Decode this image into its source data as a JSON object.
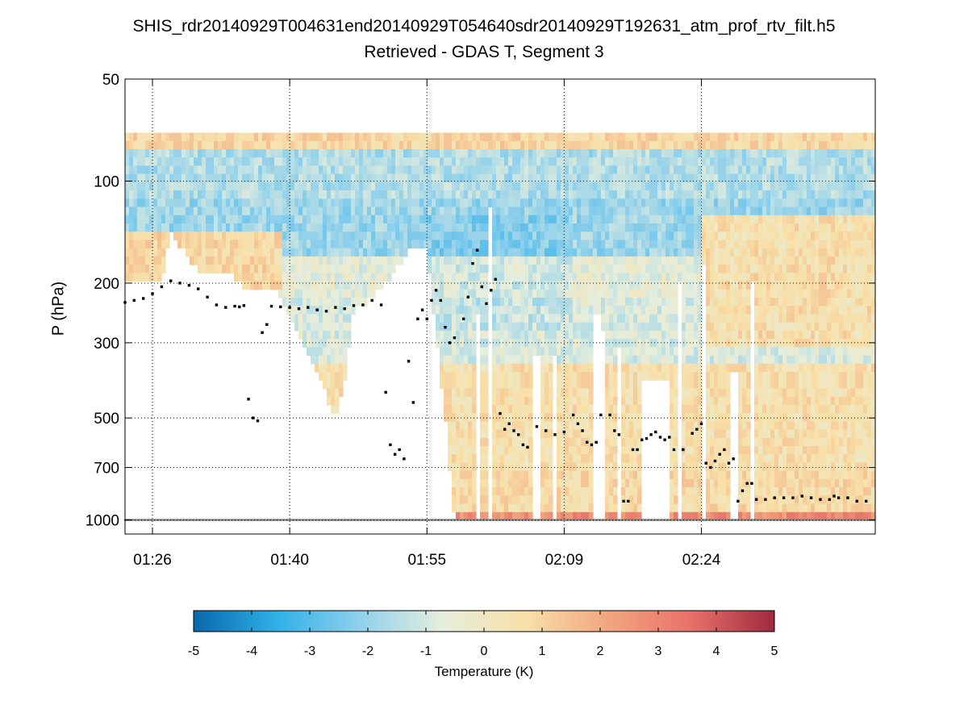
{
  "chart_data": {
    "type": "heatmap",
    "title": "SHIS_rdr20140929T004631end20140929T054640sdr20140929T192631_atm_prof_rtv_filt.h5",
    "subtitle": "Retrieved - GDAS T, Segment 3",
    "xlabel": "",
    "ylabel": "P (hPa)",
    "y_scale": "log",
    "y_direction": "reversed",
    "ylim": [
      50,
      1100
    ],
    "xlim_minutes": [
      1163,
      1245
    ],
    "x_tick_values": [
      1166,
      1181,
      1196,
      1211,
      1226
    ],
    "x_tick_labels": [
      "01:26",
      "01:40",
      "01:55",
      "02:09",
      "02:24"
    ],
    "y_tick_values": [
      50,
      100,
      200,
      300,
      500,
      700,
      1000
    ],
    "y_tick_labels": [
      "50",
      "100",
      "200",
      "300",
      "500",
      "700",
      "1000"
    ],
    "grid": true,
    "colorbar": {
      "label": "Temperature (K)",
      "range": [
        -5,
        5
      ],
      "tick_values": [
        -5,
        -4,
        -3,
        -2,
        -1,
        0,
        1,
        2,
        3,
        4,
        5
      ],
      "tick_labels": [
        "-5",
        "-4",
        "-3",
        "-2",
        "-1",
        "0",
        "1",
        "2",
        "3",
        "4",
        "5"
      ],
      "colormap": [
        "#0868ac",
        "#2fb0e6",
        "#8fd0ec",
        "#e6eedc",
        "#f8e0a8",
        "#f2a67e",
        "#e8706a",
        "#9e2a3e"
      ]
    },
    "profile_top_hPa": 72,
    "data_bottom_hPa": [
      [
        1163,
        200
      ],
      [
        1165,
        200
      ],
      [
        1167,
        200
      ],
      [
        1168,
        140
      ],
      [
        1169,
        155
      ],
      [
        1171,
        185
      ],
      [
        1175,
        190
      ],
      [
        1176,
        210
      ],
      [
        1180,
        215
      ],
      [
        1183,
        320
      ],
      [
        1186,
        500
      ],
      [
        1187,
        400
      ],
      [
        1188,
        240
      ],
      [
        1190,
        220
      ],
      [
        1191,
        210
      ],
      [
        1194,
        160
      ],
      [
        1196,
        160
      ],
      [
        1198,
        500
      ],
      [
        1199,
        1000
      ],
      [
        1202,
        1000
      ],
      [
        1203,
        1000
      ],
      [
        1207,
        1000
      ],
      [
        1209,
        1000
      ],
      [
        1211,
        1000
      ],
      [
        1213,
        1000
      ],
      [
        1214,
        1000
      ],
      [
        1245,
        1000
      ]
    ],
    "cloud_points": [
      [
        1163,
        228
      ],
      [
        1164,
        225
      ],
      [
        1165,
        222
      ],
      [
        1166,
        215
      ],
      [
        1167,
        205
      ],
      [
        1168,
        197
      ],
      [
        1169,
        200
      ],
      [
        1170,
        203
      ],
      [
        1171,
        208
      ],
      [
        1172,
        220
      ],
      [
        1173,
        232
      ],
      [
        1174,
        236
      ],
      [
        1175,
        234
      ],
      [
        1175.5,
        235
      ],
      [
        1176,
        233
      ],
      [
        1176.5,
        440
      ],
      [
        1177,
        500
      ],
      [
        1177.5,
        510
      ],
      [
        1178,
        280
      ],
      [
        1178.5,
        265
      ],
      [
        1179,
        234
      ],
      [
        1180,
        235
      ],
      [
        1181,
        236
      ],
      [
        1182,
        238
      ],
      [
        1183,
        236
      ],
      [
        1184,
        240
      ],
      [
        1185,
        242
      ],
      [
        1186,
        236
      ],
      [
        1187,
        238
      ],
      [
        1188,
        233
      ],
      [
        1189,
        232
      ],
      [
        1190,
        225
      ],
      [
        1191,
        232
      ],
      [
        1191.5,
        420
      ],
      [
        1192,
        600
      ],
      [
        1192.5,
        640
      ],
      [
        1193,
        620
      ],
      [
        1193.5,
        660
      ],
      [
        1194,
        340
      ],
      [
        1194.5,
        450
      ],
      [
        1195,
        255
      ],
      [
        1195.5,
        240
      ],
      [
        1196,
        255
      ],
      [
        1196.5,
        225
      ],
      [
        1197,
        210
      ],
      [
        1197.5,
        225
      ],
      [
        1198,
        270
      ],
      [
        1198.5,
        300
      ],
      [
        1199,
        290
      ],
      [
        1200,
        255
      ],
      [
        1200.5,
        220
      ],
      [
        1201,
        175
      ],
      [
        1201.5,
        160
      ],
      [
        1202,
        205
      ],
      [
        1202.5,
        230
      ],
      [
        1203,
        210
      ],
      [
        1203.5,
        195
      ],
      [
        1204,
        485
      ],
      [
        1204.5,
        540
      ],
      [
        1205,
        520
      ],
      [
        1205.5,
        545
      ],
      [
        1206,
        560
      ],
      [
        1206.5,
        600
      ],
      [
        1207,
        610
      ],
      [
        1208,
        530
      ],
      [
        1209,
        545
      ],
      [
        1210,
        560
      ],
      [
        1211,
        550
      ],
      [
        1212,
        490
      ],
      [
        1212.5,
        520
      ],
      [
        1213,
        545
      ],
      [
        1213.5,
        590
      ],
      [
        1214,
        600
      ],
      [
        1214.5,
        590
      ],
      [
        1215,
        490
      ],
      [
        1216,
        490
      ],
      [
        1216.5,
        545
      ],
      [
        1217,
        560
      ],
      [
        1217.5,
        880
      ],
      [
        1218,
        880
      ],
      [
        1218.5,
        620
      ],
      [
        1219,
        620
      ],
      [
        1219.5,
        580
      ],
      [
        1220,
        575
      ],
      [
        1220.5,
        560
      ],
      [
        1221,
        550
      ],
      [
        1221.5,
        570
      ],
      [
        1222,
        580
      ],
      [
        1222.5,
        570
      ],
      [
        1223,
        620
      ],
      [
        1224,
        620
      ],
      [
        1225,
        555
      ],
      [
        1225.5,
        540
      ],
      [
        1226,
        520
      ],
      [
        1226.5,
        680
      ],
      [
        1227,
        700
      ],
      [
        1227.5,
        670
      ],
      [
        1228,
        640
      ],
      [
        1228.5,
        620
      ],
      [
        1229,
        680
      ],
      [
        1229.5,
        660
      ],
      [
        1230,
        880
      ],
      [
        1230.5,
        820
      ],
      [
        1231,
        780
      ],
      [
        1231.5,
        780
      ],
      [
        1232,
        870
      ],
      [
        1233,
        870
      ],
      [
        1234,
        860
      ],
      [
        1235,
        860
      ],
      [
        1236,
        860
      ],
      [
        1237,
        850
      ],
      [
        1238,
        860
      ],
      [
        1239,
        870
      ],
      [
        1240,
        870
      ],
      [
        1240.5,
        850
      ],
      [
        1241,
        860
      ],
      [
        1242,
        860
      ],
      [
        1243,
        880
      ],
      [
        1244,
        880
      ]
    ]
  }
}
